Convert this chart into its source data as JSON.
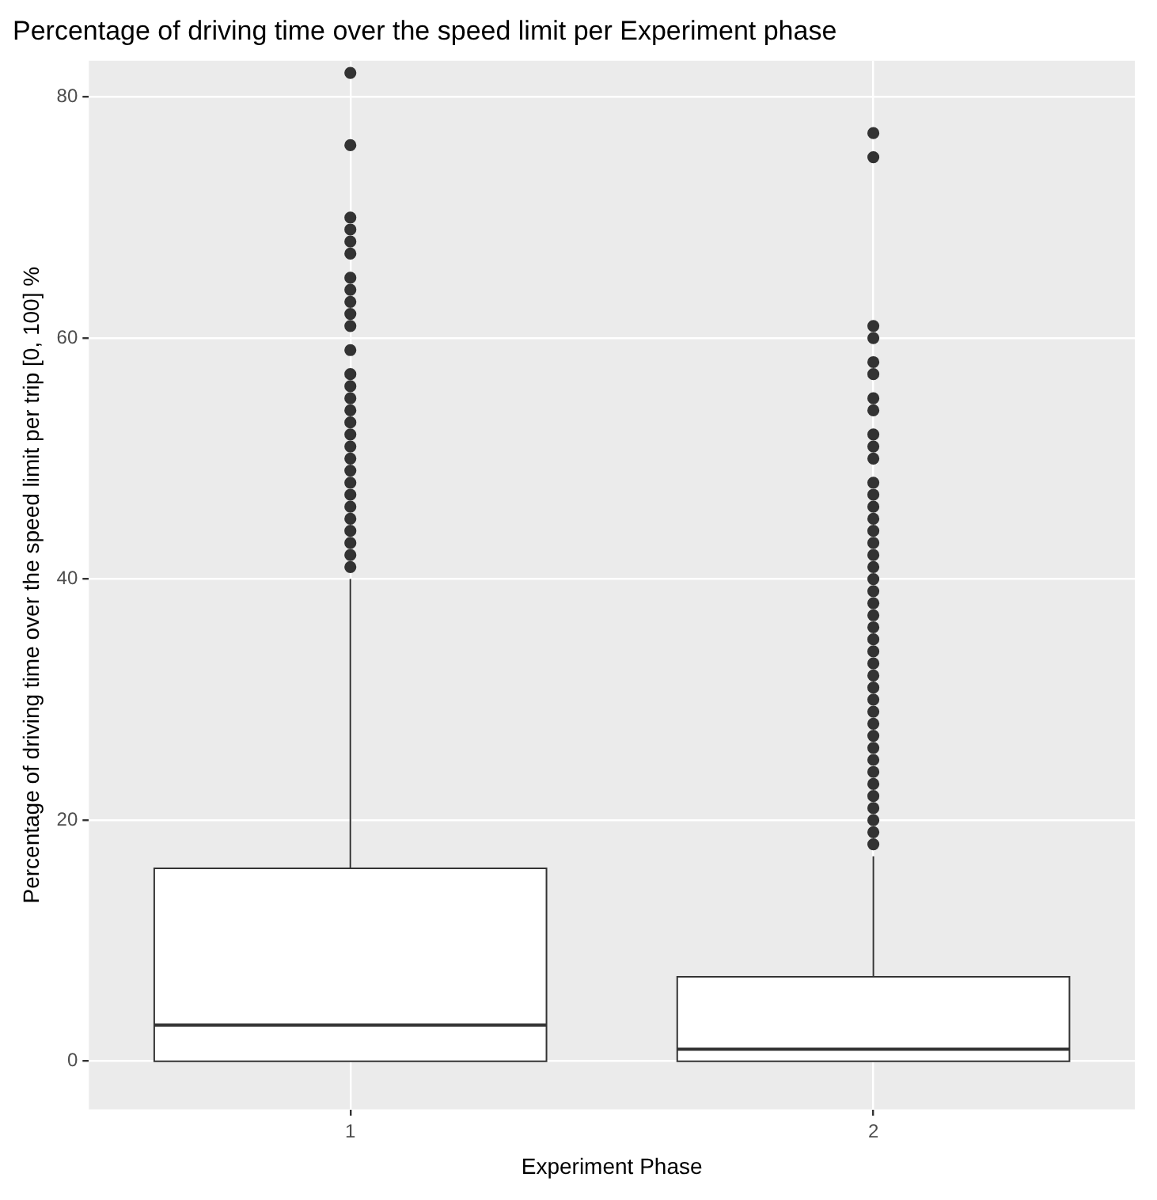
{
  "chart_data": {
    "type": "box",
    "title": "Percentage of driving time over the speed limit per Experiment phase",
    "xlabel": "Experiment Phase",
    "ylabel": "Percentage of driving time over the speed limit per trip [0, 100] %",
    "categories": [
      "1",
      "2"
    ],
    "boxes": [
      {
        "low": 0,
        "q1": 0,
        "median": 3,
        "q3": 16,
        "high": 40,
        "outliers": [
          82,
          76,
          70,
          69,
          68,
          67,
          65,
          64,
          63,
          62,
          61,
          59,
          57,
          56,
          55,
          54,
          53,
          52,
          51,
          50,
          49,
          48,
          47,
          46,
          45,
          44,
          43,
          42,
          41
        ]
      },
      {
        "low": 0,
        "q1": 0,
        "median": 1,
        "q3": 7,
        "high": 17,
        "outliers": [
          77,
          75,
          61,
          60,
          58,
          57,
          55,
          54,
          52,
          51,
          50,
          48,
          47,
          46,
          45,
          44,
          43,
          42,
          41,
          40,
          39,
          38,
          37,
          36,
          35,
          34,
          33,
          32,
          31,
          30,
          29,
          28,
          27,
          26,
          25,
          24,
          23,
          22,
          21,
          20,
          19,
          18
        ]
      }
    ],
    "ylim": [
      -4,
      83
    ],
    "yticks": [
      0,
      20,
      40,
      60,
      80
    ],
    "grid": true,
    "legend": false
  }
}
